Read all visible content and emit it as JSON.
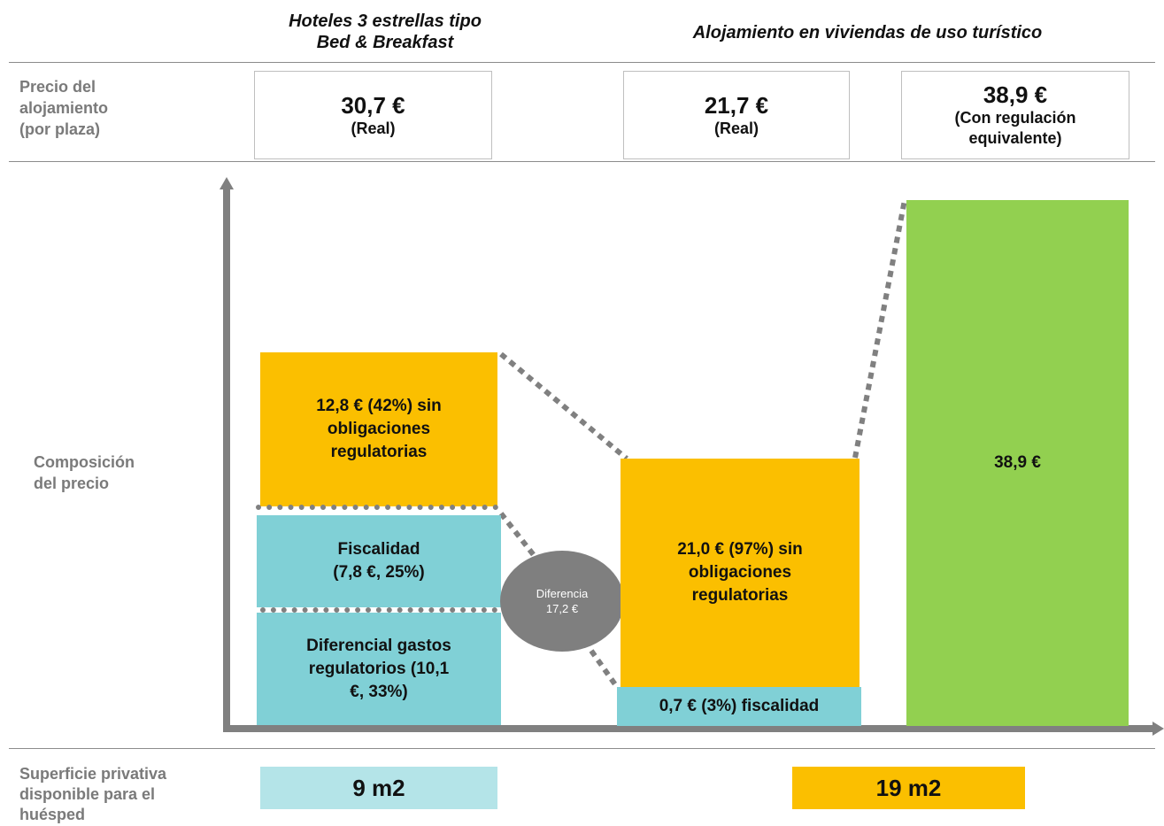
{
  "headers": {
    "hotel": "Hoteles 3 estrellas tipo\nBed & Breakfast",
    "vivienda": "Alojamiento  en viviendas  de uso turístico"
  },
  "row_labels": {
    "price": "Precio del\nalojamiento\n(por plaza)",
    "composition": "Composición\ndel precio",
    "surface": "Superficie privativa\ndisponible para el\nhuésped"
  },
  "price_boxes": [
    {
      "value": "30,7 €",
      "note": "(Real)"
    },
    {
      "value": "21,7 €",
      "note": "(Real)"
    },
    {
      "value": "38,9 €",
      "note": "(Con regulación\nequivalente)"
    }
  ],
  "segments": {
    "hotel_no_reg": "12,8 € (42%)  sin\nobligaciones\nregulatorias",
    "hotel_fiscal": "Fiscalidad\n(7,8 €, 25%)",
    "hotel_reg_diff": "Diferencial gastos\nregulatorios (10,1\n€, 33%)",
    "vivienda_no_reg": "21,0 € (97%)  sin\nobligaciones\nregulatorias",
    "vivienda_fiscal": "0,7 € (3%) fiscalidad",
    "vivienda_equiv": "38,9 €"
  },
  "difference": {
    "label": "Diferencia",
    "value": "17,2 €"
  },
  "surfaces": {
    "hotel": "9 m2",
    "vivienda": "19 m2"
  },
  "colors": {
    "orange": "#FBBF00",
    "teal": "#80D0D6",
    "light_teal": "#B4E4E8",
    "green": "#92D050",
    "axis": "#808080",
    "ellipse": "#7F7F7F"
  }
}
